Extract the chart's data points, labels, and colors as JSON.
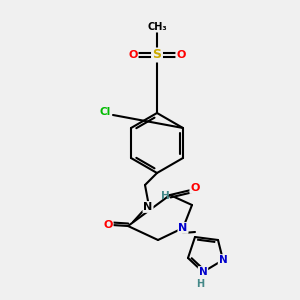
{
  "bg_color": "#f0f0f0",
  "lw": 1.5,
  "colors": {
    "C": "#000000",
    "N": "#0000cc",
    "O": "#ff0000",
    "Cl": "#00bb00",
    "S": "#ccaa00",
    "H": "#448888"
  }
}
